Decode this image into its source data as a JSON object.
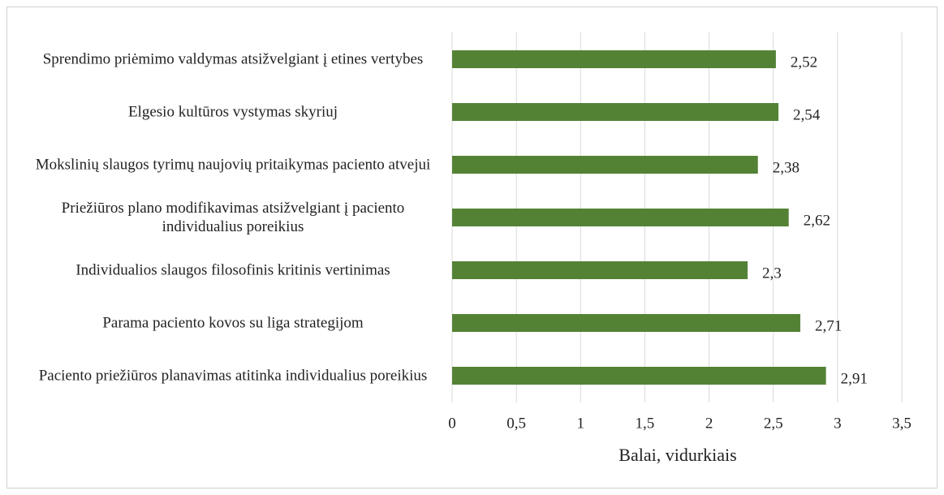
{
  "chart_data": {
    "type": "bar",
    "orientation": "horizontal",
    "categories": [
      "Sprendimo priėmimo valdymas atsižvelgiant į etines vertybes",
      "Elgesio kultūros vystymas skyriuj",
      "Mokslinių slaugos tyrimų naujovių pritaikymas paciento atvejui",
      "Priežiūros plano modifikavimas atsižvelgiant į paciento individualius poreikius",
      "Individualios slaugos filosofinis kritinis vertinimas",
      "Parama paciento kovos su liga strategijom",
      "Paciento priežiūros planavimas atitinka individualius poreikius"
    ],
    "values": [
      2.52,
      2.54,
      2.38,
      2.62,
      2.3,
      2.71,
      2.91
    ],
    "value_labels": [
      "2,52",
      "2,54",
      "2,38",
      "2,62",
      "2,3",
      "2,71",
      "2,91"
    ],
    "color": "#548235",
    "xlabel": "Balai, vidurkiais",
    "xlim": [
      0,
      3.5
    ],
    "xticks": [
      0,
      {
        "value": 0.5,
        "label": "0,5"
      },
      1,
      {
        "value": 1.5,
        "label": "1,5"
      },
      2,
      {
        "value": 2.5,
        "label": "2,5"
      },
      3,
      {
        "value": 3.5,
        "label": "3,5"
      }
    ],
    "grid": true
  }
}
